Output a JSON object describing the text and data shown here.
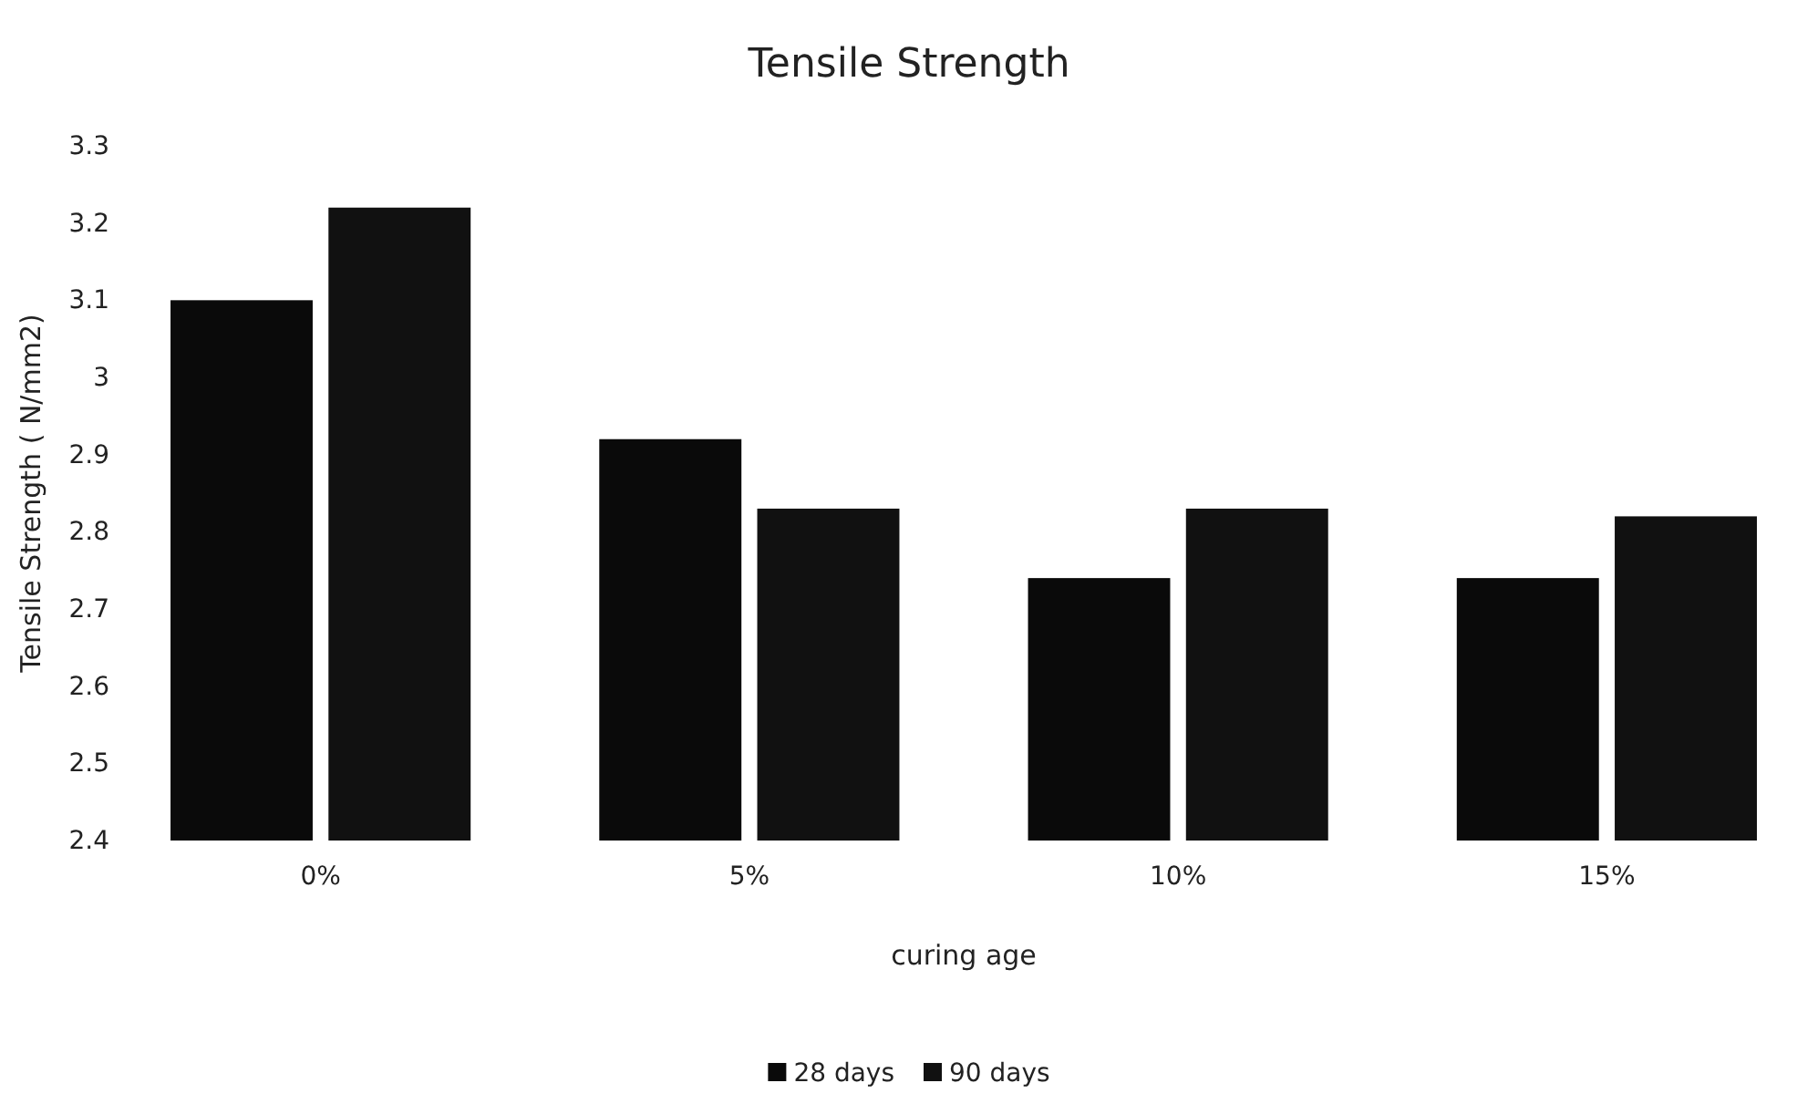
{
  "chart_data": {
    "type": "bar",
    "title": "Tensile Strength",
    "xlabel": "curing age",
    "ylabel": "Tensile Strength ( N/mm2)",
    "categories": [
      "0%",
      "5%",
      "10%",
      "15%"
    ],
    "series": [
      {
        "name": "28 days",
        "color": "#0a0a0a",
        "values": [
          3.1,
          2.92,
          2.74,
          2.74
        ]
      },
      {
        "name": "90 days",
        "color": "#111111",
        "values": [
          3.22,
          2.83,
          2.83,
          2.82
        ]
      }
    ],
    "ylim": [
      2.4,
      3.3
    ],
    "yticks": [
      2.4,
      2.5,
      2.6,
      2.7,
      2.8,
      2.9,
      3,
      3.1,
      3.2,
      3.3
    ],
    "grid": false,
    "legend": "bottom"
  }
}
